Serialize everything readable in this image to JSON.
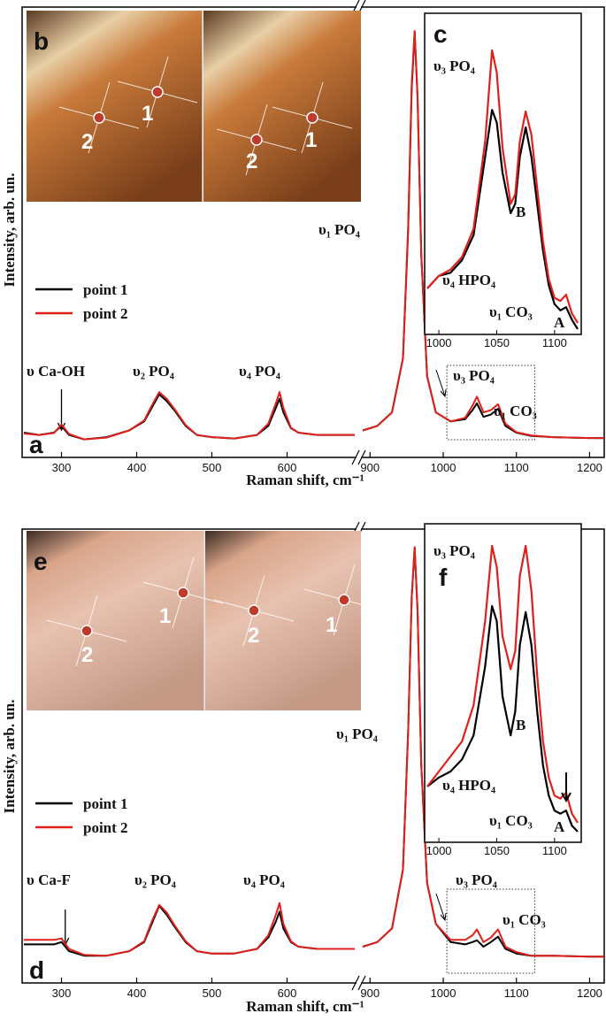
{
  "chart_data": [
    {
      "type": "line",
      "panel": "a",
      "xlabel": "Raman shift, cm⁻¹",
      "ylabel": "Intensity, arb. un.",
      "xlim": [
        250,
        1220
      ],
      "xbreak": [
        690,
        890
      ],
      "ylim": [
        0,
        100
      ],
      "xticks": [
        300,
        400,
        500,
        600,
        900,
        1000,
        1100,
        1200
      ],
      "x": [
        250,
        270,
        290,
        300,
        310,
        330,
        360,
        390,
        410,
        420,
        430,
        440,
        450,
        465,
        480,
        500,
        530,
        560,
        575,
        585,
        590,
        595,
        605,
        615,
        640,
        690,
        890,
        910,
        930,
        945,
        952,
        957,
        961,
        965,
        970,
        978,
        990,
        1010,
        1030,
        1040,
        1046,
        1055,
        1065,
        1075,
        1085,
        1100,
        1120,
        1150,
        1200,
        1220
      ],
      "series": [
        {
          "name": "point 1",
          "color": "#000000",
          "values": [
            5.5,
            5,
            5.5,
            7,
            5,
            4,
            4.5,
            6,
            8,
            11,
            14,
            12.5,
            10.5,
            7,
            5,
            4.5,
            4.2,
            5,
            7,
            11,
            13,
            10,
            6.5,
            5.5,
            5,
            5,
            6,
            7,
            10,
            22,
            50,
            82,
            94.5,
            80,
            45,
            18,
            10,
            8,
            8.5,
            10.5,
            12,
            9,
            9.5,
            10.8,
            7,
            5.5,
            4.8,
            4.5,
            4.3,
            4.3
          ]
        },
        {
          "name": "point 2",
          "color": "#e0201b",
          "values": [
            5.3,
            5,
            5.4,
            7.3,
            5.2,
            4,
            4.4,
            6,
            8.2,
            11.5,
            14.5,
            13,
            10.8,
            7.2,
            5,
            4.5,
            4.2,
            5,
            7.5,
            12,
            14.5,
            11,
            6.6,
            5.5,
            5,
            5,
            6,
            7,
            10,
            22,
            51,
            83,
            94.7,
            80,
            45,
            18,
            10,
            8,
            8.8,
            11.5,
            13.5,
            10,
            10.5,
            11.8,
            7.5,
            5.6,
            4.9,
            4.5,
            4.3,
            4.3
          ]
        }
      ],
      "annotations": [
        "υ Ca-OH",
        "υ₂ PO₄",
        "υ₄ PO₄",
        "υ₁ PO₄",
        "υ₃ PO₄",
        "υ₁ CO₃"
      ]
    },
    {
      "type": "line",
      "panel": "c",
      "xlim": [
        990,
        1120
      ],
      "ylim": [
        0,
        100
      ],
      "xticks": [
        1000,
        1050,
        1100
      ],
      "x": [
        990,
        1000,
        1010,
        1020,
        1030,
        1040,
        1046,
        1050,
        1055,
        1062,
        1066,
        1070,
        1075,
        1080,
        1085,
        1090,
        1095,
        1100,
        1105,
        1110,
        1115,
        1120
      ],
      "series": [
        {
          "name": "point 1",
          "color": "#000000",
          "values": [
            13,
            17,
            18,
            22,
            30,
            55,
            70,
            66,
            50,
            37,
            40,
            55,
            64.4,
            55,
            40,
            25,
            14,
            8,
            6,
            7,
            3,
            0
          ]
        },
        {
          "name": "point 2",
          "color": "#e0201b",
          "values": [
            13,
            17,
            19,
            23,
            32,
            60,
            89,
            82,
            58,
            40,
            43,
            60,
            69.5,
            62,
            45,
            28,
            16,
            10,
            9,
            11,
            5,
            2
          ]
        }
      ],
      "annotations": [
        "υ₃ PO₄",
        "B",
        "υ₄ HPO₄",
        "υ₁ CO₃",
        "A"
      ]
    },
    {
      "type": "line",
      "panel": "d",
      "xlabel": "Raman shift, cm⁻¹",
      "ylabel": "Intensity, arb. un.",
      "xlim": [
        250,
        1220
      ],
      "xbreak": [
        690,
        890
      ],
      "ylim": [
        0,
        100
      ],
      "xticks": [
        300,
        400,
        500,
        600,
        900,
        1000,
        1100,
        1200
      ],
      "x": [
        250,
        270,
        290,
        300,
        310,
        330,
        360,
        390,
        410,
        420,
        430,
        440,
        450,
        465,
        480,
        500,
        530,
        560,
        575,
        585,
        590,
        595,
        605,
        615,
        640,
        690,
        890,
        910,
        930,
        945,
        952,
        957,
        961,
        965,
        970,
        978,
        990,
        1010,
        1030,
        1040,
        1046,
        1055,
        1065,
        1075,
        1085,
        1100,
        1120,
        1150,
        1200,
        1220
      ],
      "series": [
        {
          "name": "point 1",
          "color": "#000000",
          "values": [
            8.5,
            8.5,
            8.5,
            9,
            7,
            6,
            6,
            7,
            9,
            13,
            17,
            15,
            12.5,
            9,
            7,
            6.5,
            6.5,
            7.5,
            10,
            13.5,
            15.7,
            12,
            9,
            8,
            7.5,
            7.5,
            8,
            9,
            12,
            25,
            55,
            85,
            96,
            82,
            48,
            22,
            13,
            9,
            8.5,
            9,
            9.4,
            8,
            9,
            10.2,
            7.5,
            6.5,
            6,
            6,
            5.8,
            5.8
          ]
        },
        {
          "name": "point 2",
          "color": "#e0201b",
          "values": [
            9.5,
            9.5,
            9.5,
            9.8,
            7.5,
            6.2,
            6,
            7,
            9.2,
            13.5,
            17.2,
            15.5,
            12.8,
            9.2,
            7,
            6.5,
            6.5,
            7.5,
            10.5,
            15,
            17.6,
            13,
            9.2,
            8,
            7.5,
            7.5,
            8,
            9,
            12,
            25,
            55,
            85,
            96,
            82,
            48,
            22,
            13,
            9.5,
            9.5,
            10.5,
            11.8,
            9,
            10,
            11.8,
            8,
            6.8,
            6,
            6,
            5.8,
            5.8
          ]
        }
      ],
      "annotations": [
        "υ Ca-F",
        "υ₂ PO₄",
        "υ₄ PO₄",
        "υ₁ PO₄",
        "υ₃ PO₄",
        "υ₁ CO₃"
      ]
    },
    {
      "type": "line",
      "panel": "f",
      "xlim": [
        990,
        1120
      ],
      "ylim": [
        0,
        100
      ],
      "xticks": [
        1000,
        1050,
        1100
      ],
      "x": [
        990,
        1000,
        1010,
        1020,
        1030,
        1040,
        1046,
        1050,
        1055,
        1062,
        1066,
        1070,
        1075,
        1080,
        1085,
        1090,
        1095,
        1100,
        1105,
        1110,
        1115,
        1120
      ],
      "series": [
        {
          "name": "point 1",
          "color": "#000000",
          "values": [
            15,
            18,
            20,
            24,
            32,
            55,
            75,
            70,
            45,
            32,
            40,
            62,
            73,
            62,
            40,
            22,
            12,
            7,
            6,
            7,
            2,
            0
          ]
        },
        {
          "name": "point 2",
          "color": "#e0201b",
          "values": [
            15,
            20,
            25,
            30,
            42,
            70,
            95,
            88,
            65,
            54,
            60,
            85,
            95,
            80,
            52,
            30,
            18,
            12,
            11,
            13,
            6,
            3
          ]
        }
      ],
      "annotations": [
        "υ₃ PO₄",
        "B",
        "υ₄ HPO₄",
        "υ₁ CO₃",
        "A"
      ]
    }
  ],
  "photos": [
    {
      "panel": "b",
      "labels": [
        "2",
        "1",
        "2",
        "1"
      ]
    },
    {
      "panel": "e",
      "labels": [
        "1",
        "2",
        "2",
        "1"
      ]
    }
  ]
}
